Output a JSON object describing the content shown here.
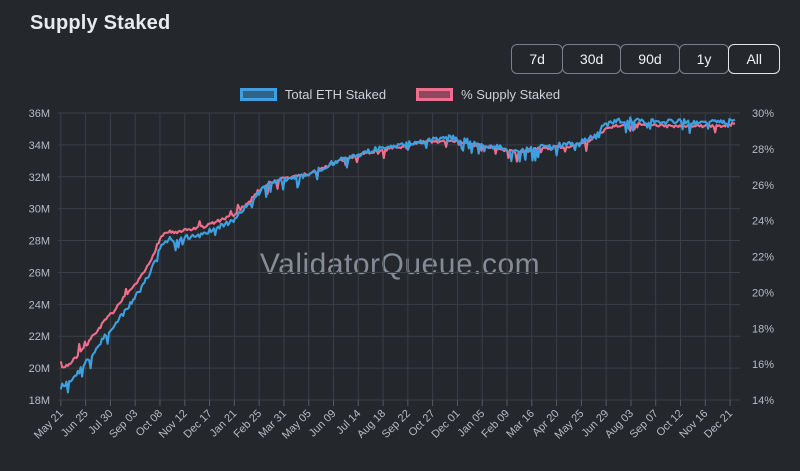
{
  "page": {
    "title": "Supply Staked",
    "background": "#24272c"
  },
  "time_range": {
    "options": [
      "7d",
      "30d",
      "90d",
      "1y",
      "All"
    ],
    "selected": "All"
  },
  "watermark": "ValidatorQueue.com",
  "colors": {
    "background": "#24272c",
    "grid": "#3b4046",
    "tick": "#565b61",
    "axis_text": "#b6bcc2",
    "title_text": "#e8eaed",
    "watermark_text": "#858c97",
    "blue_series": "#3da0e0",
    "pink_series": "#f06e8d"
  },
  "chart_data": {
    "type": "line",
    "title": "Supply Staked",
    "grid": true,
    "legend_position": "top",
    "x_axis": {
      "domain_start": "2023-05-17",
      "domain_end": "2026-01-04",
      "tick_start_date": "2023-05-21",
      "tick_interval_days": 35,
      "tick_labels": [
        "May 21",
        "Jun 25",
        "Jul 30",
        "Sep 03",
        "Oct 08",
        "Nov 12",
        "Dec 17",
        "Jan 21",
        "Feb 25",
        "Mar 31",
        "May 05",
        "Jun 09",
        "Jul 14",
        "Aug 18",
        "Sep 22",
        "Oct 27",
        "Dec 01",
        "Jan 05",
        "Feb 09",
        "Mar 16",
        "Apr 20",
        "May 25",
        "Jun 29",
        "Aug 03",
        "Sep 07",
        "Oct 12",
        "Nov 16",
        "Dec 21"
      ]
    },
    "y_left": {
      "unit": "million ETH",
      "min": 18,
      "max": 36,
      "tick_labels": [
        "36M",
        "34M",
        "32M",
        "30M",
        "28M",
        "26M",
        "24M",
        "22M",
        "20M",
        "18M"
      ]
    },
    "y_right": {
      "unit": "% of supply",
      "min": 14,
      "max": 30,
      "tick_labels": [
        "30%",
        "28%",
        "26%",
        "24%",
        "22%",
        "20%",
        "18%",
        "16%",
        "14%"
      ]
    },
    "series": [
      {
        "name": "Total ETH Staked",
        "axis": "left",
        "color": "#3da0e0",
        "fill": "rgba(61,160,224,0.5)",
        "jitter": {
          "noise": 0.16,
          "spike_prob": 0.12,
          "spike_amp": 0.75,
          "spike_dir": "down"
        },
        "points": [
          [
            "2023-05-21",
            18.85
          ],
          [
            "2023-05-28",
            19.0
          ],
          [
            "2023-06-04",
            19.15
          ],
          [
            "2023-06-11",
            19.5
          ],
          [
            "2023-06-18",
            19.9
          ],
          [
            "2023-06-25",
            20.3
          ],
          [
            "2023-07-02",
            20.75
          ],
          [
            "2023-07-09",
            21.2
          ],
          [
            "2023-07-16",
            21.65
          ],
          [
            "2023-07-23",
            22.05
          ],
          [
            "2023-07-30",
            22.4
          ],
          [
            "2023-08-06",
            22.8
          ],
          [
            "2023-08-13",
            23.2
          ],
          [
            "2023-08-20",
            23.6
          ],
          [
            "2023-08-27",
            24.0
          ],
          [
            "2023-09-03",
            24.45
          ],
          [
            "2023-09-10",
            24.9
          ],
          [
            "2023-09-17",
            25.4
          ],
          [
            "2023-09-24",
            26.0
          ],
          [
            "2023-10-01",
            26.8
          ],
          [
            "2023-10-08",
            27.6
          ],
          [
            "2023-10-15",
            28.0
          ],
          [
            "2023-10-22",
            28.1
          ],
          [
            "2023-10-29",
            27.95
          ],
          [
            "2023-11-05",
            28.05
          ],
          [
            "2023-11-12",
            28.2
          ],
          [
            "2023-11-19",
            28.25
          ],
          [
            "2023-11-26",
            28.3
          ],
          [
            "2023-12-03",
            28.35
          ],
          [
            "2023-12-10",
            28.45
          ],
          [
            "2023-12-17",
            28.6
          ],
          [
            "2023-12-24",
            28.75
          ],
          [
            "2023-12-31",
            28.9
          ],
          [
            "2024-01-07",
            29.0
          ],
          [
            "2024-01-14",
            29.15
          ],
          [
            "2024-01-21",
            29.35
          ],
          [
            "2024-01-28",
            29.7
          ],
          [
            "2024-02-04",
            30.0
          ],
          [
            "2024-02-11",
            30.3
          ],
          [
            "2024-02-18",
            30.65
          ],
          [
            "2024-02-25",
            31.0
          ],
          [
            "2024-03-03",
            31.3
          ],
          [
            "2024-03-10",
            31.5
          ],
          [
            "2024-03-17",
            31.65
          ],
          [
            "2024-03-24",
            31.75
          ],
          [
            "2024-03-31",
            31.85
          ],
          [
            "2024-04-07",
            31.9
          ],
          [
            "2024-04-14",
            31.95
          ],
          [
            "2024-04-21",
            32.0
          ],
          [
            "2024-04-28",
            32.05
          ],
          [
            "2024-05-05",
            32.15
          ],
          [
            "2024-05-12",
            32.3
          ],
          [
            "2024-05-19",
            32.45
          ],
          [
            "2024-05-26",
            32.6
          ],
          [
            "2024-06-02",
            32.75
          ],
          [
            "2024-06-09",
            32.9
          ],
          [
            "2024-06-16",
            33.0
          ],
          [
            "2024-06-23",
            33.1
          ],
          [
            "2024-06-30",
            33.2
          ],
          [
            "2024-07-14",
            33.4
          ],
          [
            "2024-07-28",
            33.6
          ],
          [
            "2024-08-11",
            33.75
          ],
          [
            "2024-08-25",
            33.85
          ],
          [
            "2024-09-08",
            33.95
          ],
          [
            "2024-09-22",
            34.05
          ],
          [
            "2024-10-06",
            34.2
          ],
          [
            "2024-10-20",
            34.3
          ],
          [
            "2024-11-03",
            34.35
          ],
          [
            "2024-11-17",
            34.45
          ],
          [
            "2024-12-01",
            34.4
          ],
          [
            "2024-12-15",
            34.25
          ],
          [
            "2024-12-29",
            34.1
          ],
          [
            "2025-01-12",
            33.95
          ],
          [
            "2025-01-26",
            33.9
          ],
          [
            "2025-02-09",
            33.7
          ],
          [
            "2025-02-23",
            33.6
          ],
          [
            "2025-03-09",
            33.7
          ],
          [
            "2025-03-23",
            33.85
          ],
          [
            "2025-04-06",
            33.9
          ],
          [
            "2025-04-20",
            34.0
          ],
          [
            "2025-05-04",
            34.05
          ],
          [
            "2025-05-18",
            34.1
          ],
          [
            "2025-06-01",
            34.3
          ],
          [
            "2025-06-15",
            34.7
          ],
          [
            "2025-06-29",
            35.3
          ],
          [
            "2025-07-13",
            35.5
          ],
          [
            "2025-07-27",
            35.55
          ],
          [
            "2025-08-10",
            35.6
          ],
          [
            "2025-08-24",
            35.5
          ],
          [
            "2025-09-07",
            35.55
          ],
          [
            "2025-09-21",
            35.45
          ],
          [
            "2025-10-05",
            35.5
          ],
          [
            "2025-10-19",
            35.45
          ],
          [
            "2025-11-02",
            35.4
          ],
          [
            "2025-11-16",
            35.45
          ],
          [
            "2025-11-30",
            35.4
          ],
          [
            "2025-12-14",
            35.45
          ],
          [
            "2025-12-28",
            35.6
          ]
        ]
      },
      {
        "name": "% Supply Staked",
        "axis": "right",
        "color": "#f06e8d",
        "fill": "rgba(240,110,141,0.5)",
        "jitter": {
          "noise": 0.09,
          "spike_prob": 0.08,
          "spike_amp": 0.5,
          "spike_dir": "up_then_down",
          "spike_switch_date": "2024-02-01"
        },
        "points": [
          [
            "2023-05-21",
            15.75
          ],
          [
            "2023-05-28",
            15.9
          ],
          [
            "2023-06-04",
            16.05
          ],
          [
            "2023-06-11",
            16.35
          ],
          [
            "2023-06-18",
            16.7
          ],
          [
            "2023-06-25",
            17.0
          ],
          [
            "2023-07-02",
            17.4
          ],
          [
            "2023-07-09",
            17.75
          ],
          [
            "2023-07-16",
            18.1
          ],
          [
            "2023-07-23",
            18.45
          ],
          [
            "2023-07-30",
            18.75
          ],
          [
            "2023-08-06",
            19.05
          ],
          [
            "2023-08-13",
            19.4
          ],
          [
            "2023-08-20",
            19.75
          ],
          [
            "2023-08-27",
            20.05
          ],
          [
            "2023-09-03",
            20.4
          ],
          [
            "2023-09-10",
            20.8
          ],
          [
            "2023-09-17",
            21.2
          ],
          [
            "2023-09-24",
            21.7
          ],
          [
            "2023-10-01",
            22.35
          ],
          [
            "2023-10-08",
            23.0
          ],
          [
            "2023-10-15",
            23.3
          ],
          [
            "2023-10-22",
            23.4
          ],
          [
            "2023-10-29",
            23.3
          ],
          [
            "2023-11-05",
            23.35
          ],
          [
            "2023-11-12",
            23.45
          ],
          [
            "2023-11-19",
            23.5
          ],
          [
            "2023-11-26",
            23.55
          ],
          [
            "2023-12-03",
            23.6
          ],
          [
            "2023-12-10",
            23.65
          ],
          [
            "2023-12-17",
            23.8
          ],
          [
            "2023-12-24",
            23.9
          ],
          [
            "2023-12-31",
            24.0
          ],
          [
            "2024-01-07",
            24.1
          ],
          [
            "2024-01-14",
            24.2
          ],
          [
            "2024-01-21",
            24.35
          ],
          [
            "2024-01-28",
            24.6
          ],
          [
            "2024-02-04",
            24.85
          ],
          [
            "2024-02-11",
            25.1
          ],
          [
            "2024-02-18",
            25.4
          ],
          [
            "2024-02-25",
            25.7
          ],
          [
            "2024-03-03",
            25.95
          ],
          [
            "2024-03-10",
            26.1
          ],
          [
            "2024-03-17",
            26.2
          ],
          [
            "2024-03-24",
            26.3
          ],
          [
            "2024-03-31",
            26.35
          ],
          [
            "2024-04-07",
            26.4
          ],
          [
            "2024-04-14",
            26.45
          ],
          [
            "2024-04-21",
            26.5
          ],
          [
            "2024-04-28",
            26.55
          ],
          [
            "2024-05-05",
            26.6
          ],
          [
            "2024-05-12",
            26.7
          ],
          [
            "2024-05-19",
            26.85
          ],
          [
            "2024-05-26",
            26.95
          ],
          [
            "2024-06-02",
            27.1
          ],
          [
            "2024-06-09",
            27.2
          ],
          [
            "2024-06-16",
            27.3
          ],
          [
            "2024-06-23",
            27.4
          ],
          [
            "2024-06-30",
            27.5
          ],
          [
            "2024-07-14",
            27.65
          ],
          [
            "2024-07-28",
            27.8
          ],
          [
            "2024-08-11",
            27.9
          ],
          [
            "2024-08-25",
            28.0
          ],
          [
            "2024-09-08",
            28.1
          ],
          [
            "2024-09-22",
            28.15
          ],
          [
            "2024-10-06",
            28.3
          ],
          [
            "2024-10-20",
            28.4
          ],
          [
            "2024-11-03",
            28.4
          ],
          [
            "2024-11-17",
            28.5
          ],
          [
            "2024-12-01",
            28.45
          ],
          [
            "2024-12-15",
            28.3
          ],
          [
            "2024-12-29",
            28.2
          ],
          [
            "2025-01-12",
            28.1
          ],
          [
            "2025-01-26",
            28.05
          ],
          [
            "2025-02-09",
            27.9
          ],
          [
            "2025-02-23",
            27.8
          ],
          [
            "2025-03-09",
            27.9
          ],
          [
            "2025-03-23",
            28.0
          ],
          [
            "2025-04-06",
            28.05
          ],
          [
            "2025-04-20",
            28.1
          ],
          [
            "2025-05-04",
            28.15
          ],
          [
            "2025-05-18",
            28.2
          ],
          [
            "2025-06-01",
            28.35
          ],
          [
            "2025-06-15",
            28.7
          ],
          [
            "2025-06-29",
            29.15
          ],
          [
            "2025-07-13",
            29.3
          ],
          [
            "2025-07-27",
            29.35
          ],
          [
            "2025-08-10",
            29.4
          ],
          [
            "2025-08-24",
            29.3
          ],
          [
            "2025-09-07",
            29.35
          ],
          [
            "2025-09-21",
            29.25
          ],
          [
            "2025-10-05",
            29.3
          ],
          [
            "2025-10-19",
            29.3
          ],
          [
            "2025-11-02",
            29.25
          ],
          [
            "2025-11-16",
            29.3
          ],
          [
            "2025-12-01",
            29.25
          ],
          [
            "2025-12-14",
            29.3
          ],
          [
            "2025-12-28",
            29.4
          ]
        ]
      }
    ]
  }
}
